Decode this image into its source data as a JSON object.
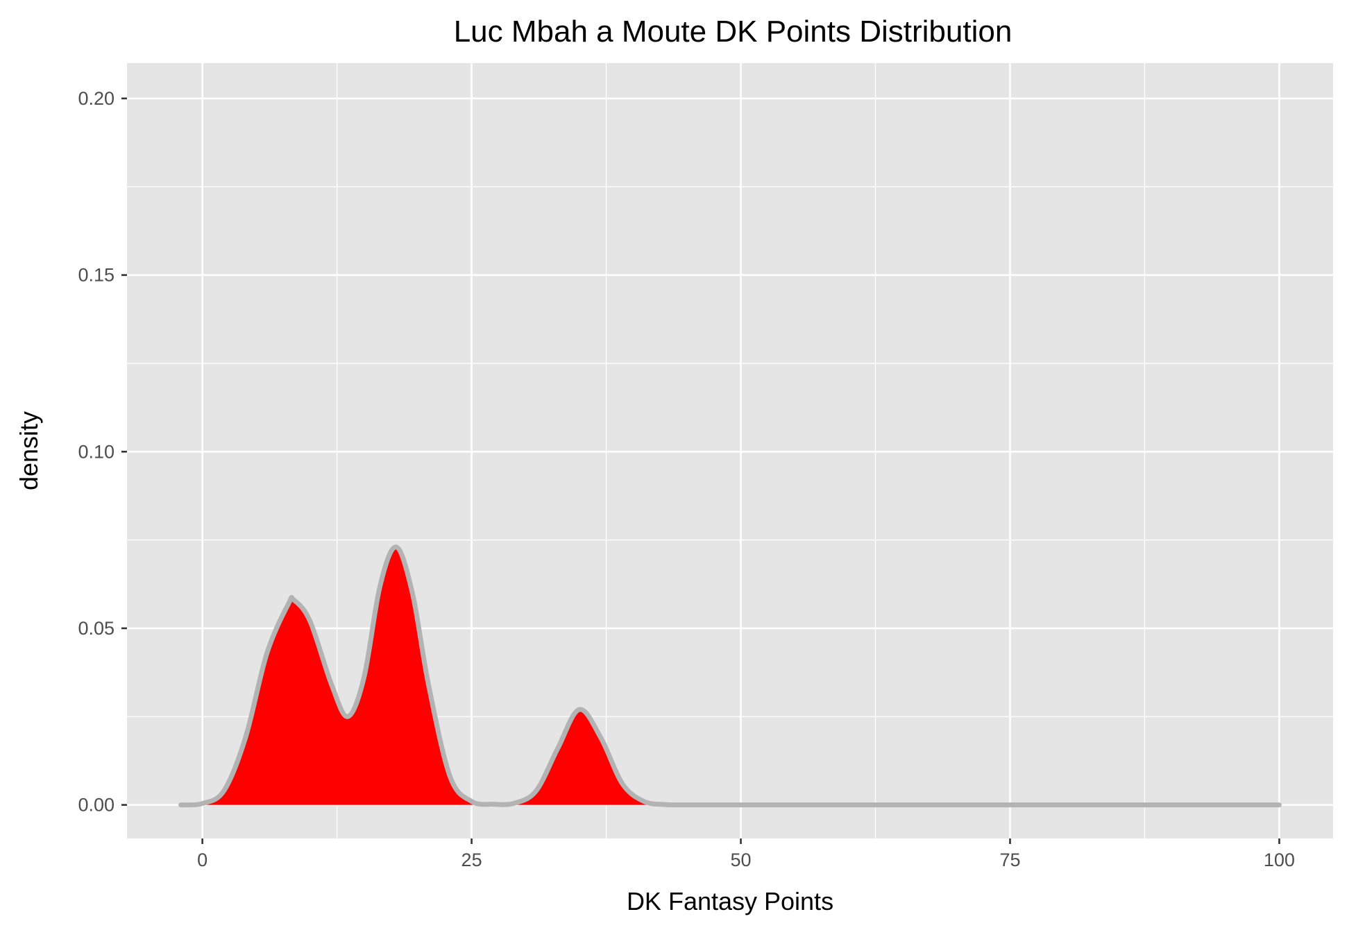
{
  "chart_data": {
    "type": "area",
    "title": "Luc Mbah a Moute DK Points Distribution",
    "xlabel": "DK Fantasy Points",
    "ylabel": "density",
    "xlim": [
      -7,
      105
    ],
    "ylim": [
      -0.0095,
      0.21
    ],
    "x_ticks": [
      0,
      25,
      50,
      75,
      100
    ],
    "x_tick_labels": [
      "0",
      "25",
      "50",
      "75",
      "100"
    ],
    "y_ticks": [
      0,
      0.05,
      0.1,
      0.15,
      0.2
    ],
    "y_tick_labels": [
      "0.00",
      "0.05",
      "0.10",
      "0.15",
      "0.20"
    ],
    "grid": true,
    "legend": "none",
    "colors": {
      "panel": "#e5e5e5",
      "grid": "#ffffff",
      "fill": "#ff0000",
      "line": "#b3b3b3",
      "tick_label": "#4d4d4d"
    },
    "series": [
      {
        "x": [
          -2,
          0,
          2,
          4,
          6,
          8,
          8.5,
          10,
          12,
          13.5,
          15,
          16.5,
          18,
          19.5,
          21,
          23,
          25,
          27,
          29,
          31,
          33,
          35,
          37,
          39,
          41,
          43,
          45,
          50,
          60,
          70,
          80,
          90,
          100
        ],
        "y": [
          0.0,
          0.0004,
          0.004,
          0.019,
          0.043,
          0.057,
          0.058,
          0.052,
          0.034,
          0.025,
          0.036,
          0.062,
          0.073,
          0.06,
          0.034,
          0.008,
          0.001,
          0.0002,
          0.0005,
          0.004,
          0.016,
          0.027,
          0.019,
          0.006,
          0.001,
          0.0001,
          0.0,
          0.0,
          0.0,
          0.0,
          0.0,
          0.0,
          0.0
        ]
      }
    ]
  }
}
